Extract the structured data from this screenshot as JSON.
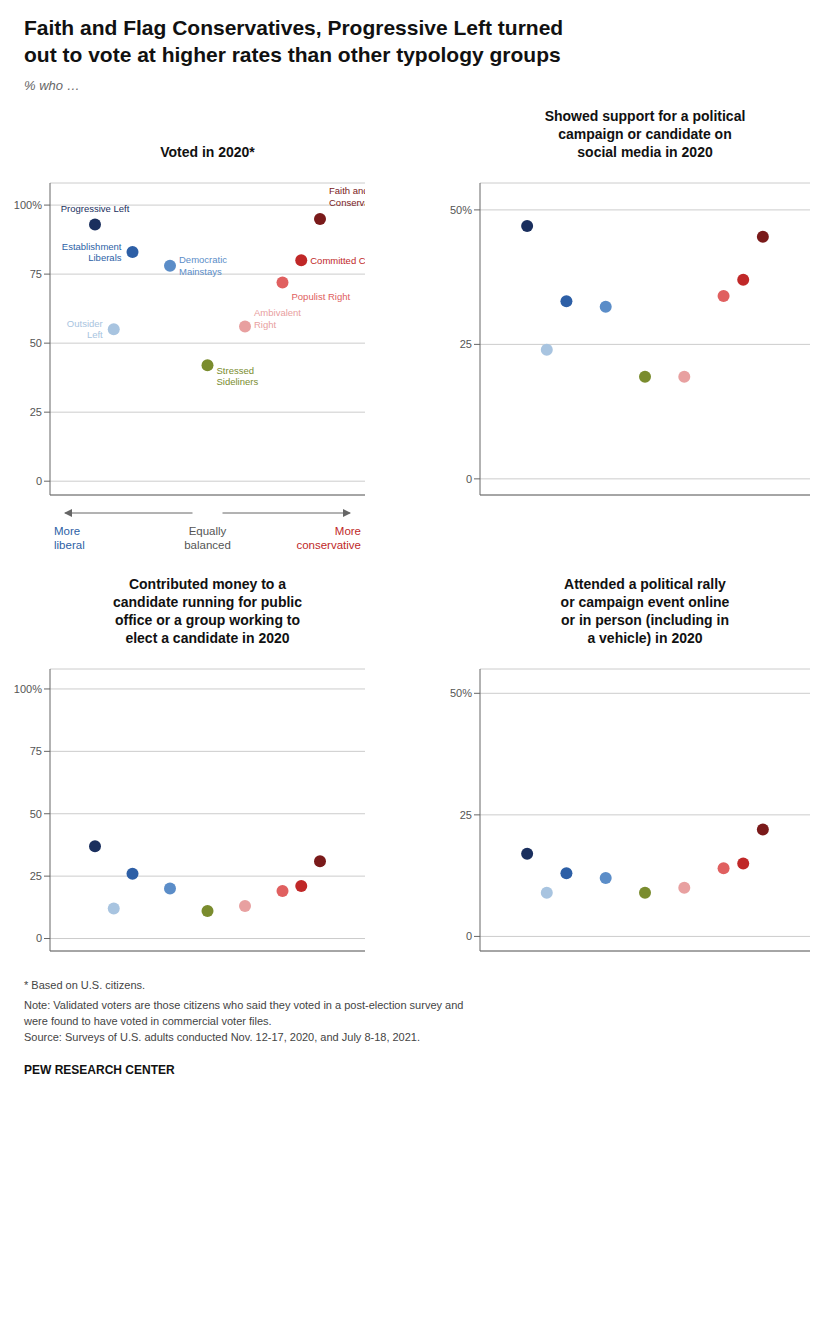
{
  "title": "Faith and Flag Conservatives, Progressive Left turned\nout to vote at higher rates than other typology groups",
  "subtitle": "% who …",
  "notes": [
    "* Based on U.S. citizens.",
    "Note: Validated voters are those citizens who said they voted in a post-election survey and\nwere found to have voted in commercial voter files.\nSource: Surveys of U.S. adults conducted Nov. 12-17, 2020, and July 8-18, 2021."
  ],
  "footer": "PEW RESEARCH CENTER",
  "chart_data": [
    {
      "type": "scatter",
      "title": "Voted in 2020*",
      "x": [
        -3.0,
        -2.0,
        -1.0,
        -2.5,
        0.0,
        1.0,
        2.0,
        2.5,
        3.0
      ],
      "values": [
        93,
        83,
        78,
        55,
        42,
        56,
        72,
        80,
        95
      ],
      "colors": [
        "#1a2f5e",
        "#2d5fa6",
        "#5b8dc8",
        "#a8c4e0",
        "#7a8c2e",
        "#e8a0a0",
        "#e06060",
        "#c02828",
        "#7a1a1a"
      ],
      "xlim": [
        -4.2,
        4.2
      ],
      "ylim": [
        -5,
        108
      ],
      "yticks": [
        0,
        25,
        50,
        75,
        {
          "value": 100,
          "label": "100%"
        }
      ],
      "grid": true,
      "tick_labels": "y",
      "labels": [
        "Progressive Left",
        "Establishment\nLiberals",
        "Democratic\nMainstays",
        "Outsider\nLeft",
        "Stressed\nSideliners",
        "Ambivalent\nRight",
        "Populist Right",
        "Committed Conservatives",
        "Faith and Flag\nConservatives"
      ],
      "annotations": [
        {
          "text": "More\nliberal",
          "color": "#2d5fa6"
        },
        {
          "text": "Equally\nbalanced",
          "color": "#555555"
        },
        {
          "text": "More\nconservative",
          "color": "#c02828"
        }
      ]
    },
    {
      "type": "scatter",
      "title": "Showed support for a political\ncampaign or candidate on\nsocial media in 2020",
      "x": [
        -3.0,
        -2.0,
        -1.0,
        -2.5,
        0.0,
        1.0,
        2.0,
        2.5,
        3.0
      ],
      "values": [
        47,
        33,
        32,
        24,
        19,
        19,
        34,
        37,
        45
      ],
      "colors": [
        "#1a2f5e",
        "#2d5fa6",
        "#5b8dc8",
        "#a8c4e0",
        "#7a8c2e",
        "#e8a0a0",
        "#e06060",
        "#c02828",
        "#7a1a1a"
      ],
      "xlim": [
        -4.2,
        4.2
      ],
      "ylim": [
        -3,
        55
      ],
      "yticks": [
        0,
        25,
        {
          "value": 50,
          "label": "50%"
        }
      ],
      "grid": true,
      "tick_labels": "y"
    },
    {
      "type": "scatter",
      "title": "Contributed money to a\ncandidate running for public\noffice or a group working to\nelect a candidate in 2020",
      "x": [
        -3.0,
        -2.0,
        -1.0,
        -2.5,
        0.0,
        1.0,
        2.0,
        2.5,
        3.0
      ],
      "values": [
        37,
        26,
        20,
        12,
        11,
        13,
        19,
        21,
        31
      ],
      "colors": [
        "#1a2f5e",
        "#2d5fa6",
        "#5b8dc8",
        "#a8c4e0",
        "#7a8c2e",
        "#e8a0a0",
        "#e06060",
        "#c02828",
        "#7a1a1a"
      ],
      "xlim": [
        -4.2,
        4.2
      ],
      "ylim": [
        -5,
        108
      ],
      "yticks": [
        0,
        25,
        50,
        75,
        {
          "value": 100,
          "label": "100%"
        }
      ],
      "grid": true,
      "tick_labels": "y"
    },
    {
      "type": "scatter",
      "title": "Attended a political rally\nor campaign event online\nor in person (including in\na vehicle) in 2020",
      "x": [
        -3.0,
        -2.0,
        -1.0,
        -2.5,
        0.0,
        1.0,
        2.0,
        2.5,
        3.0
      ],
      "values": [
        17,
        13,
        12,
        9,
        9,
        10,
        14,
        15,
        22
      ],
      "colors": [
        "#1a2f5e",
        "#2d5fa6",
        "#5b8dc8",
        "#a8c4e0",
        "#7a8c2e",
        "#e8a0a0",
        "#e06060",
        "#c02828",
        "#7a1a1a"
      ],
      "xlim": [
        -4.2,
        4.2
      ],
      "ylim": [
        -3,
        55
      ],
      "yticks": [
        0,
        25,
        {
          "value": 50,
          "label": "50%"
        }
      ],
      "grid": true,
      "tick_labels": "y"
    }
  ]
}
